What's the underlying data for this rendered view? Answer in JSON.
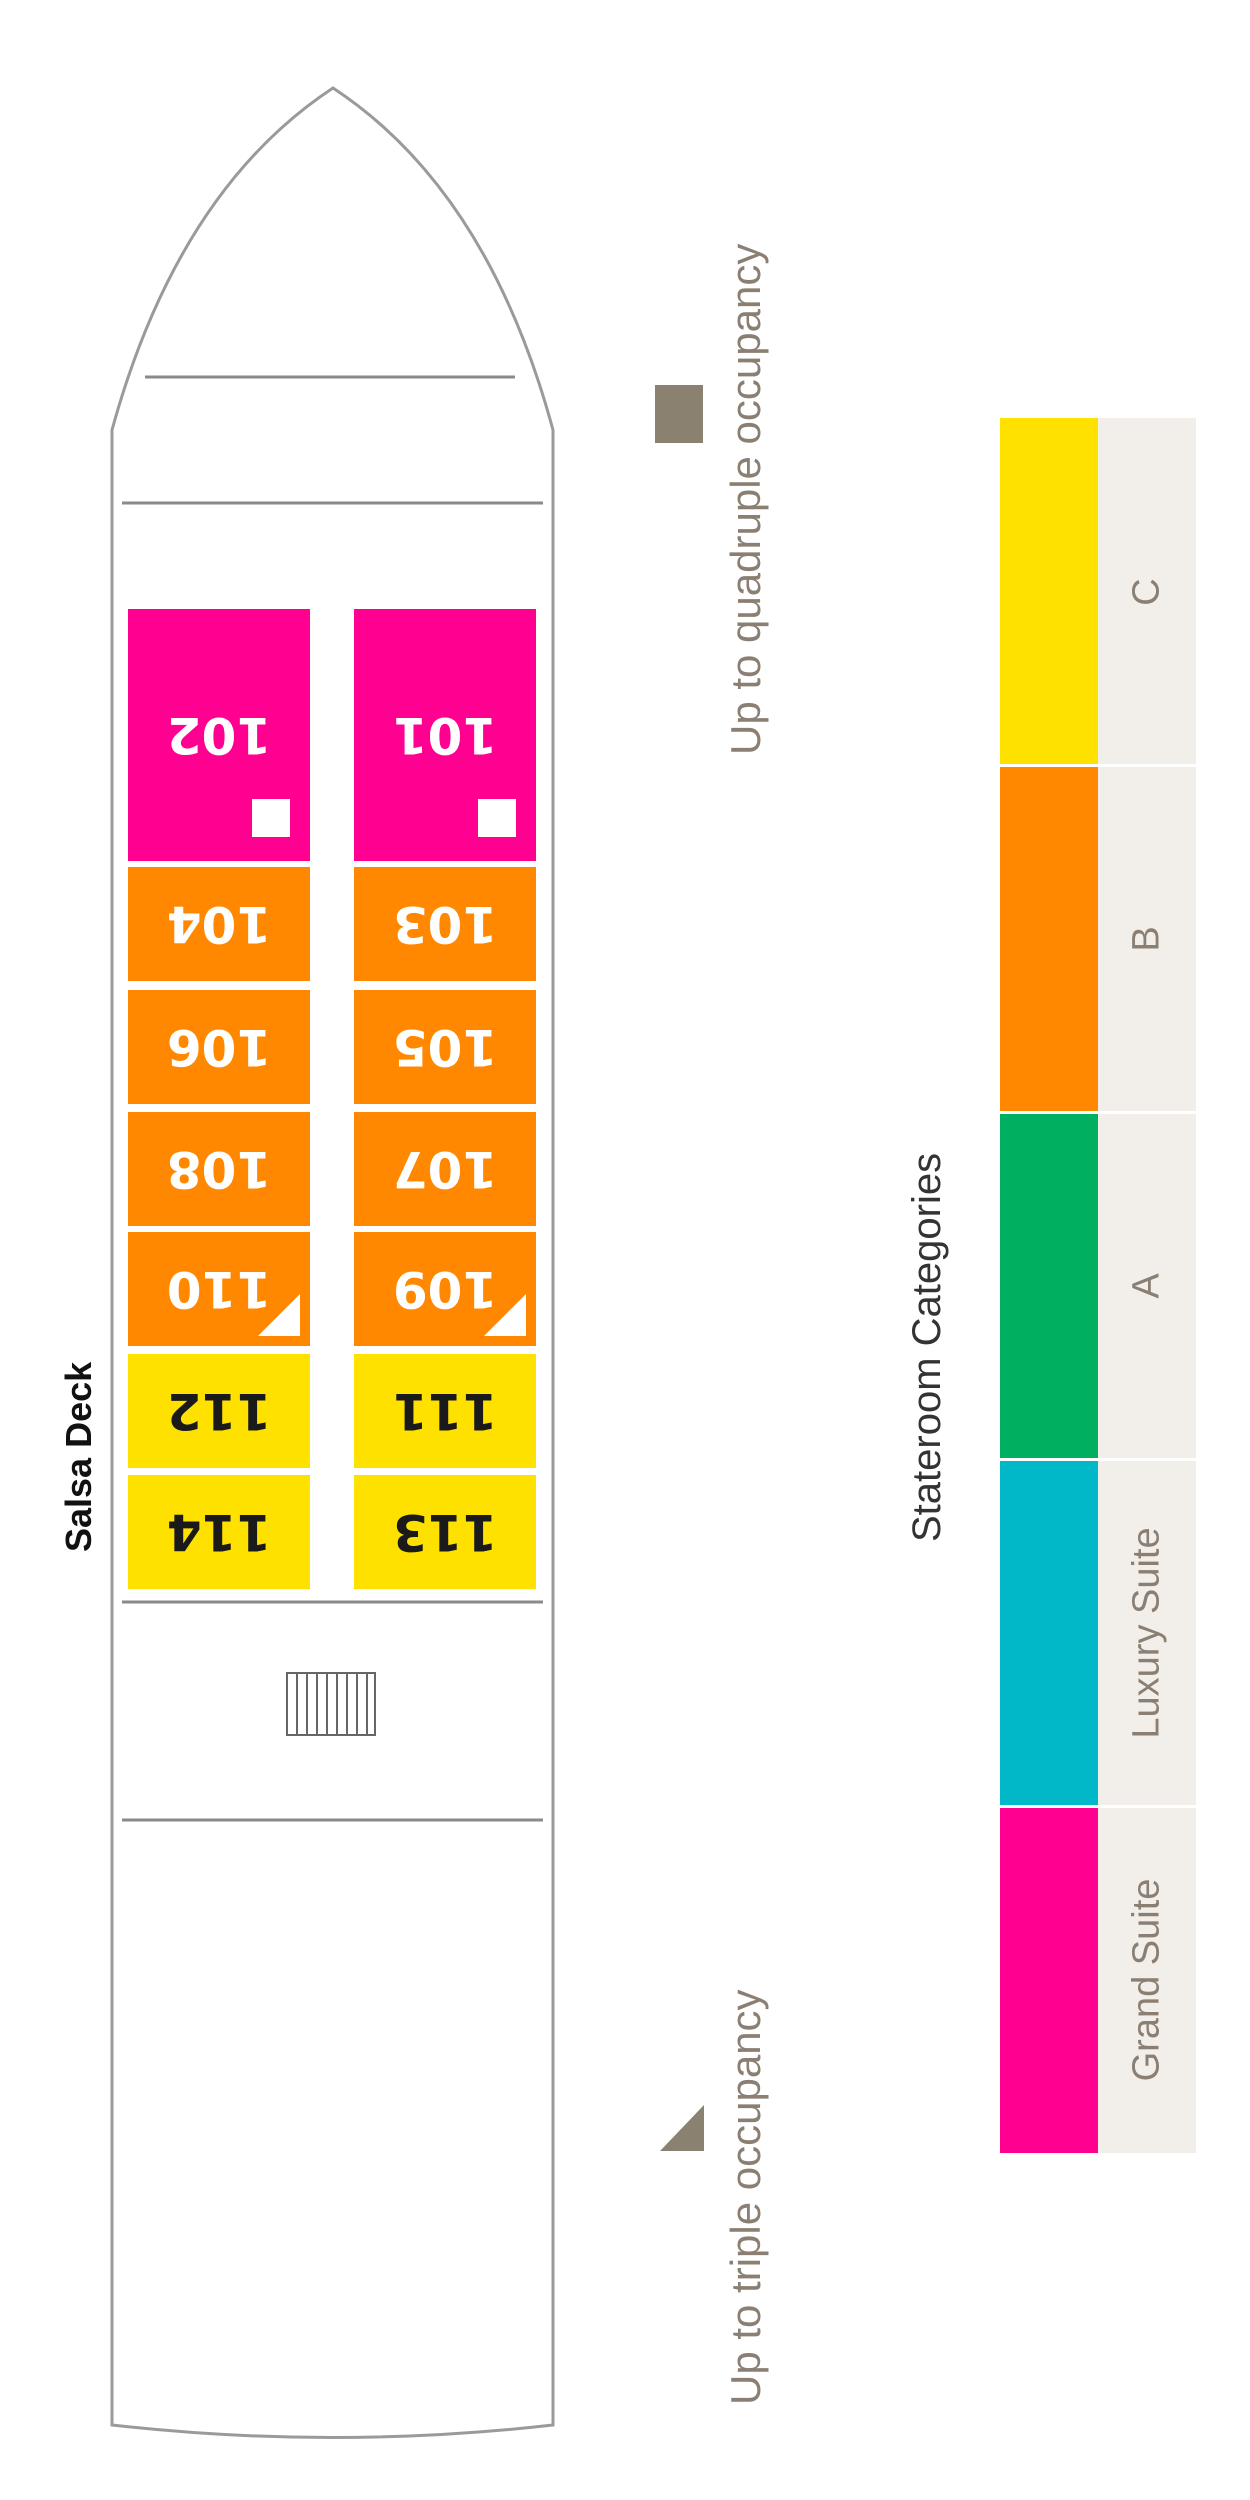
{
  "deck": {
    "name": "Salsa Deck",
    "cabins": [
      {
        "number": "101",
        "category": "Grand Suite",
        "occupancy": "quadruple"
      },
      {
        "number": "102",
        "category": "Grand Suite",
        "occupancy": "quadruple"
      },
      {
        "number": "103",
        "category": "B",
        "occupancy": ""
      },
      {
        "number": "104",
        "category": "B",
        "occupancy": ""
      },
      {
        "number": "105",
        "category": "B",
        "occupancy": ""
      },
      {
        "number": "106",
        "category": "B",
        "occupancy": ""
      },
      {
        "number": "107",
        "category": "B",
        "occupancy": ""
      },
      {
        "number": "108",
        "category": "B",
        "occupancy": ""
      },
      {
        "number": "109",
        "category": "B",
        "occupancy": "triple"
      },
      {
        "number": "110",
        "category": "B",
        "occupancy": "triple"
      },
      {
        "number": "111",
        "category": "C",
        "occupancy": ""
      },
      {
        "number": "112",
        "category": "C",
        "occupancy": ""
      },
      {
        "number": "113",
        "category": "C",
        "occupancy": ""
      },
      {
        "number": "114",
        "category": "C",
        "occupancy": ""
      }
    ]
  },
  "legend": {
    "quadruple": "Up to quadruple occupancy",
    "triple": "Up to triple occupancy",
    "marker_color": "#8b8170"
  },
  "categories": {
    "title": "Stateroom Categories",
    "items": [
      {
        "name": "C",
        "color": "#ffe100"
      },
      {
        "name": "B",
        "color": "#ff8800"
      },
      {
        "name": "A",
        "color": "#00b060"
      },
      {
        "name": "Luxury Suite",
        "color": "#00b8c8"
      },
      {
        "name": "Grand Suite",
        "color": "#ff0090"
      }
    ]
  }
}
